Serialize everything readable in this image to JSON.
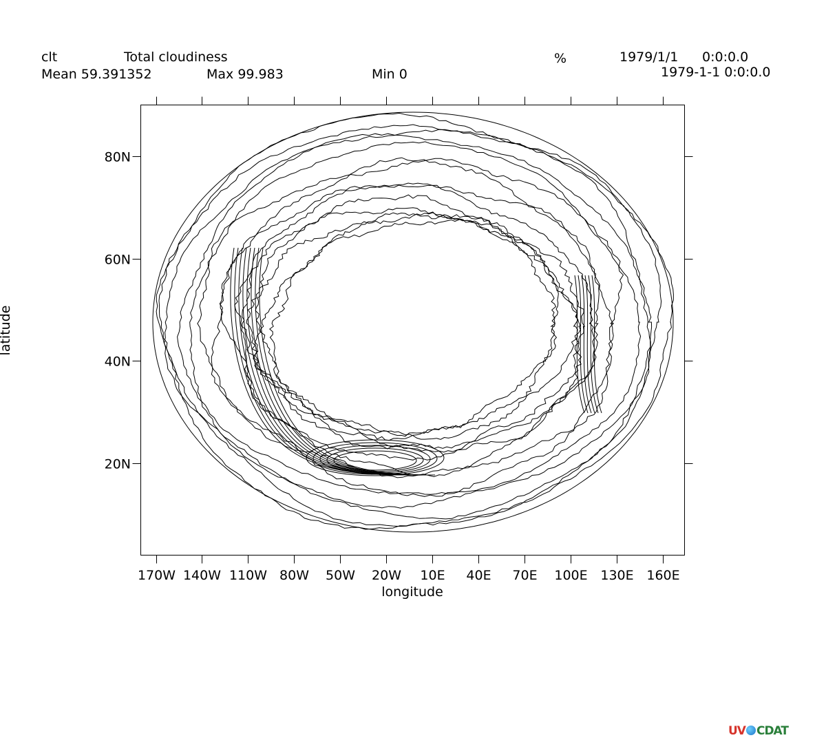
{
  "header": {
    "variable": "clt",
    "long_name": "Total cloudiness",
    "units": "%",
    "date": "1979/1/1",
    "time": "0:0:0.0",
    "datetime": "1979-1-1 0:0:0.0",
    "mean": "Mean 59.391352",
    "max": "Max 99.983",
    "min": "Min 0"
  },
  "chart_data": {
    "type": "contour",
    "projection": "orthographic-polar (northern hemisphere)",
    "title": "Total cloudiness",
    "variable": "clt",
    "units": "%",
    "xlabel": "longitude",
    "ylabel": "latitude",
    "x_ticks": [
      "170W",
      "140W",
      "110W",
      "80W",
      "50W",
      "20W",
      "10E",
      "40E",
      "70E",
      "100E",
      "130E",
      "160E"
    ],
    "y_ticks": [
      "80N",
      "60N",
      "40N",
      "20N"
    ],
    "statistics": {
      "mean": 59.391352,
      "max": 99.983,
      "min": 0
    },
    "grid": false,
    "line_color": "#000000"
  },
  "logo": {
    "text_left": "UV",
    "text_right": "CDAT"
  }
}
